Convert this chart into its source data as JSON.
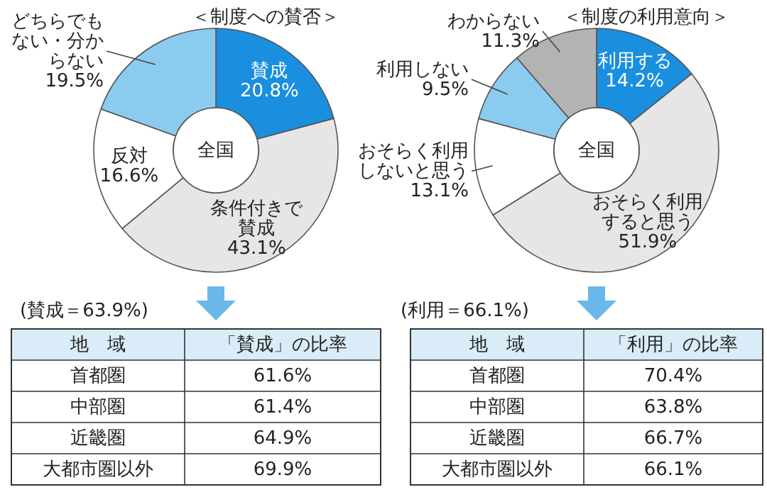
{
  "chart_data": [
    {
      "type": "donut",
      "title": "＜制度への賛否＞",
      "categories": [
        "賛成",
        "条件付きで賛成",
        "反対",
        "どちらでもない・分からない"
      ],
      "values": [
        20.8,
        43.1,
        16.6,
        19.5
      ],
      "value_labels": [
        "20.8%",
        "43.1%",
        "16.6%",
        "19.5%"
      ],
      "colors": [
        "#1a8fe0",
        "#e6e6e6",
        "#ffffff",
        "#8ccbf0"
      ],
      "annotations": [
        "全国",
        "(賛成＝63.9%)"
      ]
    },
    {
      "type": "other",
      "xlabel": "地　域",
      "ylabel": "「賛成」の比率",
      "categories": [
        "首都圏",
        "中部圏",
        "近畿圏",
        "大都市圏以外"
      ],
      "values": [
        61.6,
        61.4,
        64.9,
        69.9
      ],
      "value_labels": [
        "61.6%",
        "61.4%",
        "64.9%",
        "69.9%"
      ]
    },
    {
      "type": "donut",
      "title": "＜制度の利用意向＞",
      "categories": [
        "利用する",
        "おそらく利用すると思う",
        "おそらく利用しないと思う",
        "利用しない",
        "わからない"
      ],
      "values": [
        14.2,
        51.9,
        13.1,
        9.5,
        11.3
      ],
      "value_labels": [
        "14.2%",
        "51.9%",
        "13.1%",
        "9.5%",
        "11.3%"
      ],
      "colors": [
        "#1a8fe0",
        "#e6e6e6",
        "#ffffff",
        "#8ccbf0",
        "#b3b3b3"
      ],
      "annotations": [
        "全国",
        "(利用＝66.1%)"
      ]
    },
    {
      "type": "other",
      "xlabel": "地　域",
      "ylabel": "「利用」の比率",
      "categories": [
        "首都圏",
        "中部圏",
        "近畿圏",
        "大都市圏以外"
      ],
      "values": [
        70.4,
        63.8,
        66.7,
        66.1
      ],
      "value_labels": [
        "70.4%",
        "63.8%",
        "66.7%",
        "66.1%"
      ]
    }
  ]
}
